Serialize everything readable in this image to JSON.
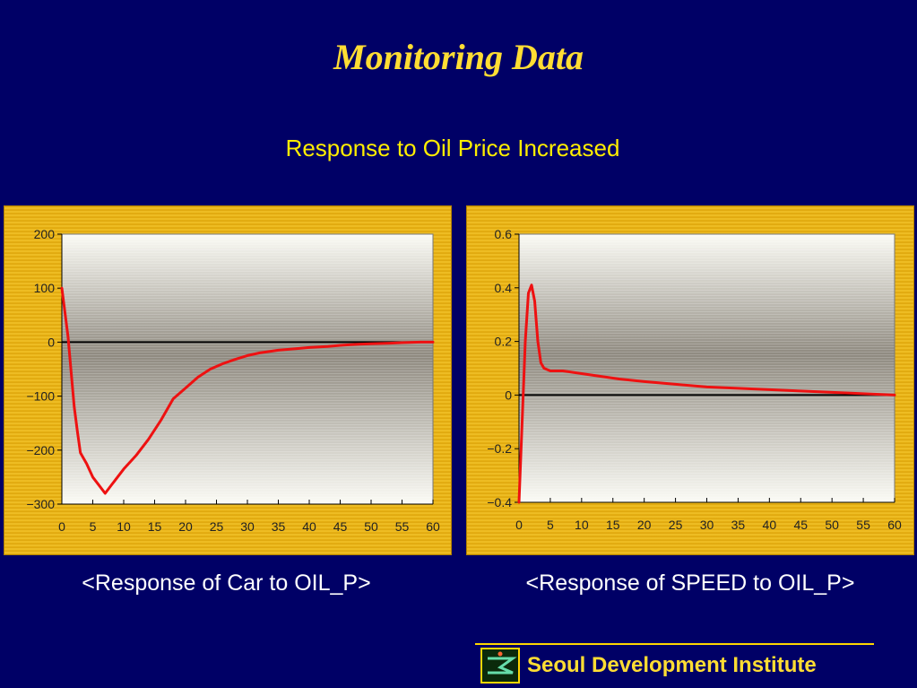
{
  "title": "Monitoring Data",
  "subtitle": "Response to Oil Price Increased",
  "footer": {
    "institute": "Seoul Development Institute",
    "logo_icon": "sdi-logo-icon"
  },
  "colors": {
    "background": "#000066",
    "title": "#ffdd33",
    "series": "#ee1111",
    "panel": "#eebb22"
  },
  "chart_data": [
    {
      "type": "line",
      "caption": "<Response of Car to OIL_P>",
      "xlim": [
        0,
        60
      ],
      "ylim": [
        -300,
        200
      ],
      "xticks": [
        0,
        5,
        10,
        15,
        20,
        25,
        30,
        35,
        40,
        45,
        50,
        55,
        60
      ],
      "yticks": [
        200,
        100,
        0,
        -100,
        -200,
        -300
      ],
      "ytick_labels": [
        "200",
        "100",
        "0",
        "−100",
        "−200",
        "−300"
      ],
      "xtick_labels": [
        "0",
        "5",
        "10",
        "15",
        "20",
        "25",
        "30",
        "35",
        "40",
        "45",
        "50",
        "55",
        "60"
      ],
      "zero_line": true,
      "series": [
        {
          "color": "#ee1111",
          "x": [
            0,
            1,
            2,
            2.5,
            3,
            4,
            5,
            6,
            7,
            8,
            9,
            10,
            12,
            14,
            16,
            18,
            20,
            22,
            24,
            26,
            28,
            30,
            32,
            35,
            38,
            40,
            43,
            45,
            48,
            50,
            53,
            55,
            58,
            60
          ],
          "y": [
            100,
            10,
            -120,
            -165,
            -205,
            -225,
            -250,
            -265,
            -280,
            -265,
            -250,
            -235,
            -210,
            -180,
            -145,
            -105,
            -85,
            -65,
            -50,
            -40,
            -32,
            -25,
            -20,
            -15,
            -12,
            -10,
            -8,
            -6,
            -4,
            -3,
            -2,
            -1,
            0,
            0
          ]
        }
      ]
    },
    {
      "type": "line",
      "caption": "<Response of SPEED to OIL_P>",
      "xlim": [
        0,
        60
      ],
      "ylim": [
        -0.4,
        0.6
      ],
      "xticks": [
        0,
        5,
        10,
        15,
        20,
        25,
        30,
        35,
        40,
        45,
        50,
        55,
        60
      ],
      "yticks": [
        0.6,
        0.4,
        0.2,
        0,
        -0.2,
        -0.4
      ],
      "ytick_labels": [
        "0.6",
        "0.4",
        "0.2",
        "0",
        "−0.2",
        "−0.4"
      ],
      "xtick_labels": [
        "0",
        "5",
        "10",
        "15",
        "20",
        "25",
        "30",
        "35",
        "40",
        "45",
        "50",
        "55",
        "60"
      ],
      "zero_line": true,
      "series": [
        {
          "color": "#ee1111",
          "x": [
            0,
            1,
            1.5,
            2,
            2.5,
            3,
            3.5,
            4,
            5,
            7,
            10,
            13,
            16,
            20,
            25,
            30,
            35,
            40,
            45,
            50,
            55,
            60
          ],
          "y": [
            -0.4,
            0.2,
            0.38,
            0.41,
            0.35,
            0.2,
            0.12,
            0.1,
            0.09,
            0.09,
            0.08,
            0.07,
            0.06,
            0.05,
            0.04,
            0.03,
            0.025,
            0.02,
            0.015,
            0.01,
            0.005,
            0.0
          ]
        }
      ]
    }
  ]
}
